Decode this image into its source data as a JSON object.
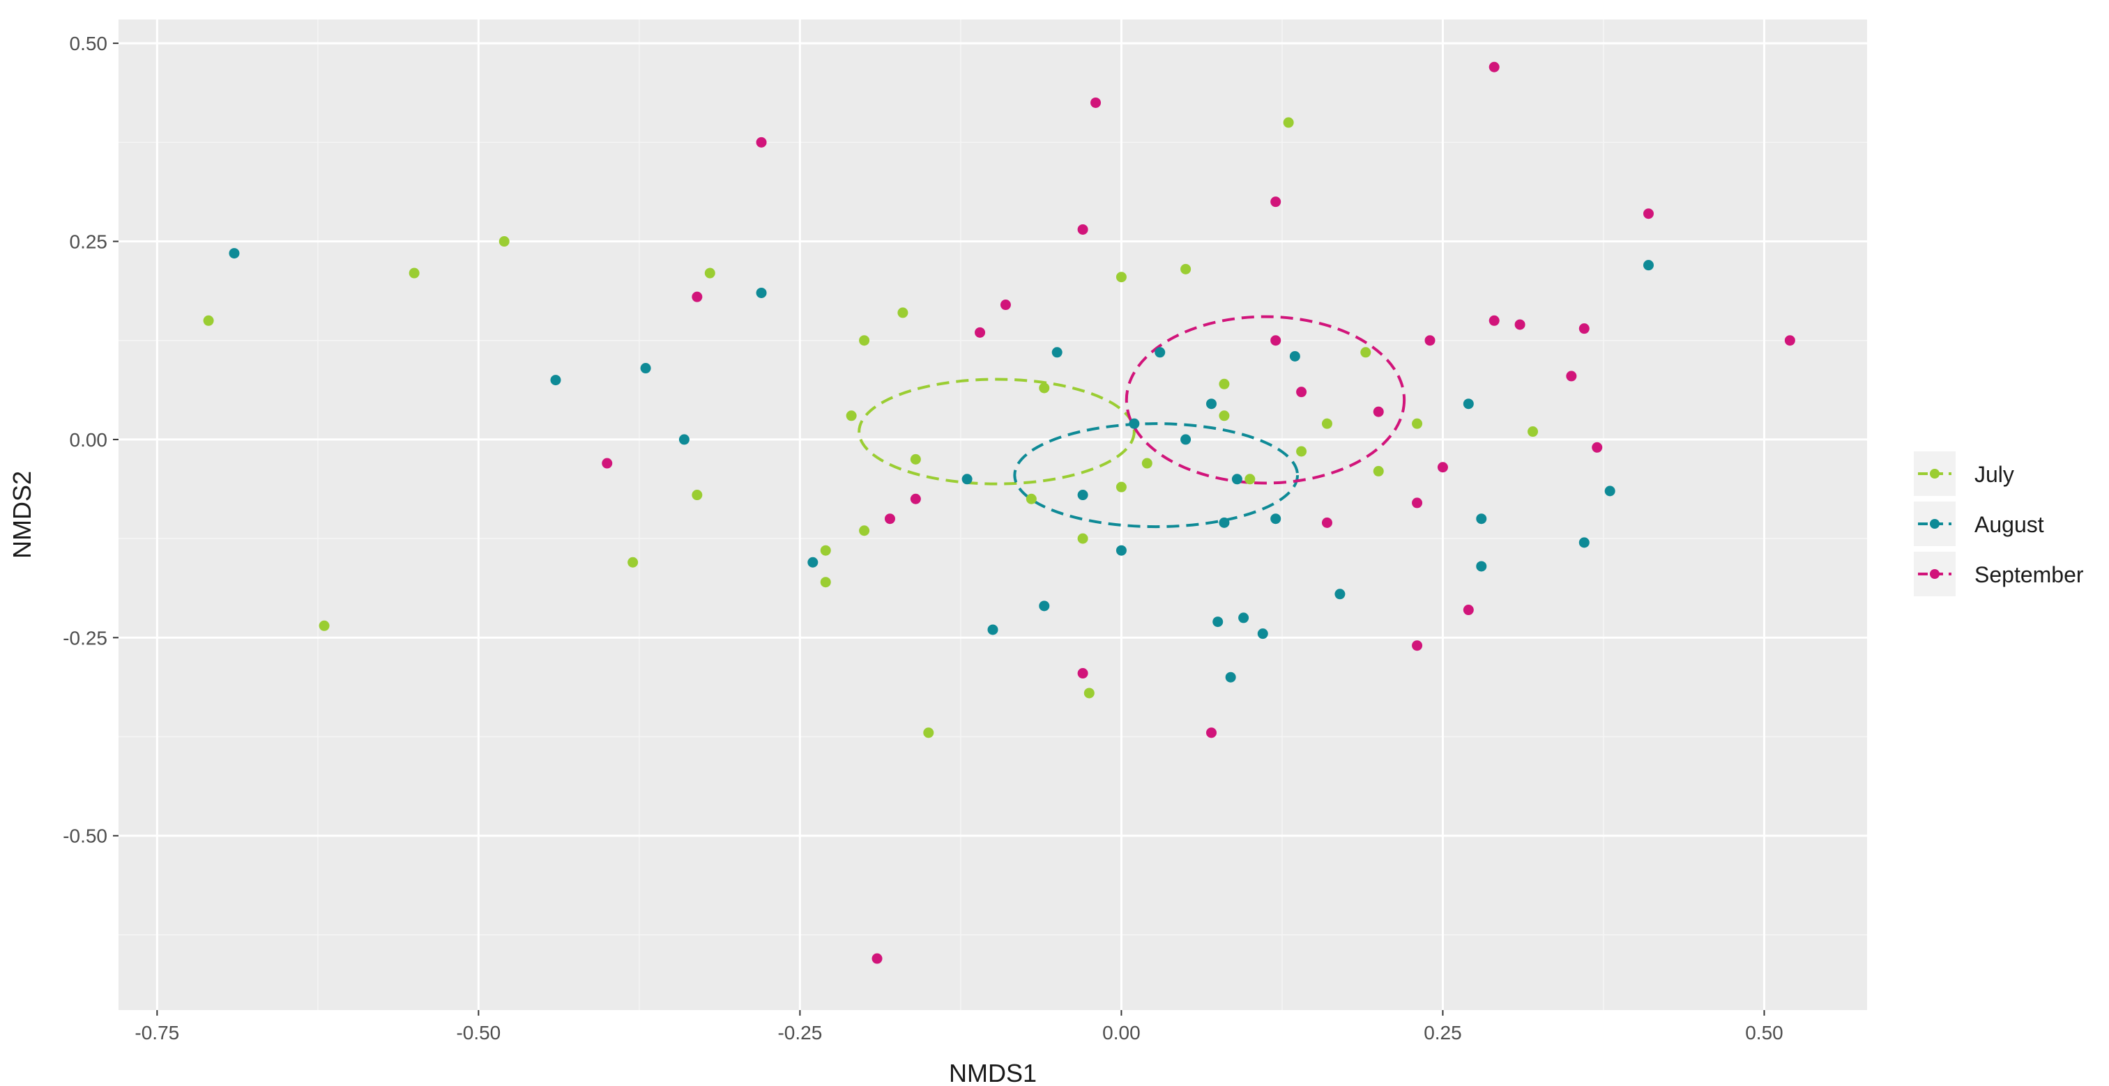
{
  "chart_data": {
    "type": "scatter",
    "xlabel": "NMDS1",
    "ylabel": "NMDS2",
    "xlim": [
      -0.78,
      0.58
    ],
    "ylim": [
      -0.72,
      0.53
    ],
    "x_ticks": [
      -0.75,
      -0.5,
      -0.25,
      0.0,
      0.25,
      0.5
    ],
    "y_ticks": [
      0.5,
      0.25,
      0.0,
      -0.25,
      -0.5
    ],
    "x_tick_labels": [
      "-0.75",
      "-0.50",
      "-0.25",
      "0.00",
      "0.25",
      "0.50"
    ],
    "y_tick_labels": [
      "0.50",
      "0.25",
      "0.00",
      "-0.25",
      "-0.50"
    ],
    "grid": true,
    "legend_position": "right",
    "legend_labels": [
      "July",
      "August",
      "September"
    ],
    "series": [
      {
        "name": "July",
        "color": "#9ACD32",
        "ellipse": {
          "cx": -0.097,
          "cy": 0.01,
          "rx": 0.107,
          "ry": 0.066
        },
        "x": [
          -0.71,
          -0.55,
          -0.48,
          -0.62,
          -0.38,
          -0.33,
          -0.32,
          -0.21,
          -0.2,
          -0.17,
          -0.16,
          -0.2,
          -0.23,
          -0.23,
          -0.15,
          -0.06,
          -0.07,
          -0.03,
          -0.025,
          0.0,
          0.0,
          0.02,
          0.05,
          0.08,
          0.08,
          0.1,
          0.13,
          0.14,
          0.16,
          0.19,
          0.2,
          0.23,
          0.32
        ],
        "y": [
          0.15,
          0.21,
          0.25,
          -0.235,
          -0.155,
          -0.07,
          0.21,
          0.03,
          0.125,
          0.16,
          -0.025,
          -0.115,
          -0.14,
          -0.18,
          -0.37,
          0.065,
          -0.075,
          -0.125,
          -0.32,
          0.205,
          -0.06,
          -0.03,
          0.215,
          0.07,
          0.03,
          -0.05,
          0.4,
          -0.015,
          0.02,
          0.11,
          -0.04,
          0.02,
          0.01
        ]
      },
      {
        "name": "August",
        "color": "#0E8A96",
        "ellipse": {
          "cx": 0.027,
          "cy": -0.045,
          "rx": 0.11,
          "ry": 0.065
        },
        "x": [
          -0.69,
          -0.44,
          -0.37,
          -0.34,
          -0.28,
          -0.24,
          -0.12,
          -0.1,
          -0.06,
          -0.05,
          -0.03,
          0.0,
          0.01,
          0.03,
          0.05,
          0.07,
          0.075,
          0.08,
          0.085,
          0.09,
          0.095,
          0.11,
          0.12,
          0.135,
          0.17,
          0.27,
          0.28,
          0.28,
          0.36,
          0.38,
          0.41
        ],
        "y": [
          0.235,
          0.075,
          0.09,
          0.0,
          0.185,
          -0.155,
          -0.05,
          -0.24,
          -0.21,
          0.11,
          -0.07,
          -0.14,
          0.02,
          0.11,
          0.0,
          0.045,
          -0.23,
          -0.105,
          -0.3,
          -0.05,
          -0.225,
          -0.245,
          -0.1,
          0.105,
          -0.195,
          0.045,
          -0.16,
          -0.1,
          -0.13,
          -0.065,
          0.22
        ]
      },
      {
        "name": "September",
        "color": "#D1147A",
        "ellipse": {
          "cx": 0.112,
          "cy": 0.05,
          "rx": 0.108,
          "ry": 0.105
        },
        "x": [
          -0.4,
          -0.33,
          -0.28,
          -0.19,
          -0.18,
          -0.16,
          -0.11,
          -0.09,
          -0.03,
          -0.03,
          -0.02,
          0.07,
          0.12,
          0.12,
          0.14,
          0.16,
          0.2,
          0.23,
          0.23,
          0.24,
          0.25,
          0.27,
          0.29,
          0.29,
          0.31,
          0.35,
          0.36,
          0.37,
          0.41,
          0.52
        ],
        "y": [
          -0.03,
          0.18,
          0.375,
          -0.655,
          -0.1,
          -0.075,
          0.135,
          0.17,
          0.265,
          -0.295,
          0.425,
          -0.37,
          0.3,
          0.125,
          0.06,
          -0.105,
          0.035,
          -0.08,
          -0.26,
          0.125,
          -0.035,
          -0.215,
          0.47,
          0.15,
          0.145,
          0.08,
          0.14,
          -0.01,
          0.285,
          0.125
        ]
      }
    ]
  }
}
